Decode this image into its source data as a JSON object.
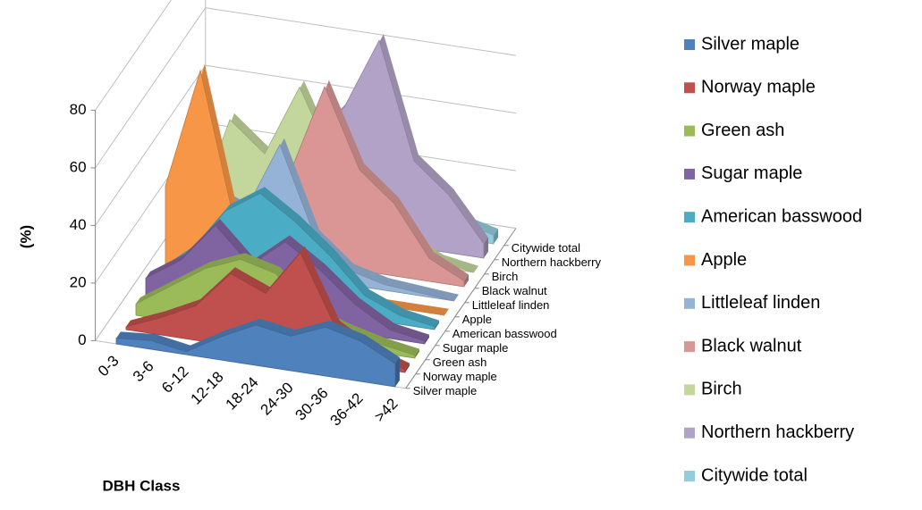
{
  "chart_data": {
    "type": "area3d",
    "xlabel": "DBH Class",
    "ylabel": "(%)",
    "categories": [
      "0-3",
      "3-6",
      "6-12",
      "12-18",
      "18-24",
      "24-30",
      "30-36",
      "36-42",
      ">42"
    ],
    "ylim": [
      0,
      80
    ],
    "yticks": [
      0,
      20,
      40,
      60,
      80
    ],
    "grid": true,
    "legend": "right",
    "series": [
      {
        "name": "Silver maple",
        "color": "#4f81bd",
        "values": [
          2,
          3,
          1,
          8,
          14,
          12,
          17,
          14,
          8
        ]
      },
      {
        "name": "Norway maple",
        "color": "#c0504d",
        "values": [
          1,
          6,
          12,
          25,
          20,
          36,
          12,
          5,
          1
        ]
      },
      {
        "name": "Green ash",
        "color": "#9bbb59",
        "values": [
          4,
          12,
          20,
          25,
          22,
          10,
          6,
          3,
          1
        ]
      },
      {
        "name": "Sugar maple",
        "color": "#8064a2",
        "values": [
          8,
          16,
          30,
          18,
          28,
          20,
          10,
          3,
          1
        ]
      },
      {
        "name": "American basswood",
        "color": "#4bacc6",
        "values": [
          4,
          14,
          30,
          38,
          30,
          20,
          8,
          3,
          1
        ]
      },
      {
        "name": "Apple",
        "color": "#f79646",
        "values": [
          30,
          72,
          20,
          5,
          0,
          0,
          0,
          0,
          0
        ]
      },
      {
        "name": "Littleleaf linden",
        "color": "#95b3d7",
        "values": [
          5,
          25,
          20,
          45,
          15,
          5,
          2,
          1,
          0
        ]
      },
      {
        "name": "Black walnut",
        "color": "#d99694",
        "values": [
          0,
          2,
          8,
          30,
          62,
          35,
          25,
          8,
          2
        ]
      },
      {
        "name": "Birch",
        "color": "#c3d69b",
        "values": [
          5,
          40,
          30,
          55,
          30,
          20,
          8,
          2,
          0
        ]
      },
      {
        "name": "Northern hackberry",
        "color": "#b3a2c7",
        "values": [
          0,
          2,
          5,
          30,
          45,
          70,
          30,
          20,
          5
        ]
      },
      {
        "name": "Citywide total",
        "color": "#93cddd",
        "values": [
          5,
          15,
          25,
          35,
          32,
          22,
          12,
          6,
          3
        ]
      }
    ]
  }
}
